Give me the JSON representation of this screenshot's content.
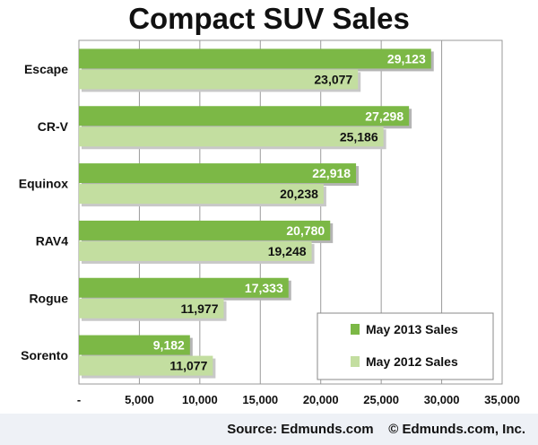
{
  "chart_data": {
    "type": "bar",
    "orientation": "horizontal",
    "title": "Compact SUV Sales",
    "categories": [
      "Escape",
      "CR-V",
      "Equinox",
      "RAV4",
      "Rogue",
      "Sorento"
    ],
    "series": [
      {
        "name": "May 2013 Sales",
        "values": [
          29123,
          27298,
          22918,
          20780,
          17333,
          9182
        ],
        "labels": [
          "29,123",
          "27,298",
          "22,918",
          "20,780",
          "17,333",
          "9,182"
        ],
        "color": "#7cb846"
      },
      {
        "name": "May 2012 Sales",
        "values": [
          23077,
          25186,
          20238,
          19248,
          11977,
          11077
        ],
        "labels": [
          "23,077",
          "25,186",
          "20,238",
          "19,248",
          "11,977",
          "11,077"
        ],
        "color": "#c3dea0"
      }
    ],
    "xlim": [
      0,
      35000
    ],
    "x_ticks": [
      0,
      5000,
      10000,
      15000,
      20000,
      25000,
      30000,
      35000
    ],
    "x_tick_labels": [
      "-",
      "5,000",
      "10,000",
      "15,000",
      "20,000",
      "25,000",
      "30,000",
      "35,000"
    ],
    "grid": "vertical",
    "legend_position": "bottom-right"
  },
  "footer": {
    "source": "Source: Edmunds.com",
    "copyright": "© Edmunds.com, Inc."
  }
}
